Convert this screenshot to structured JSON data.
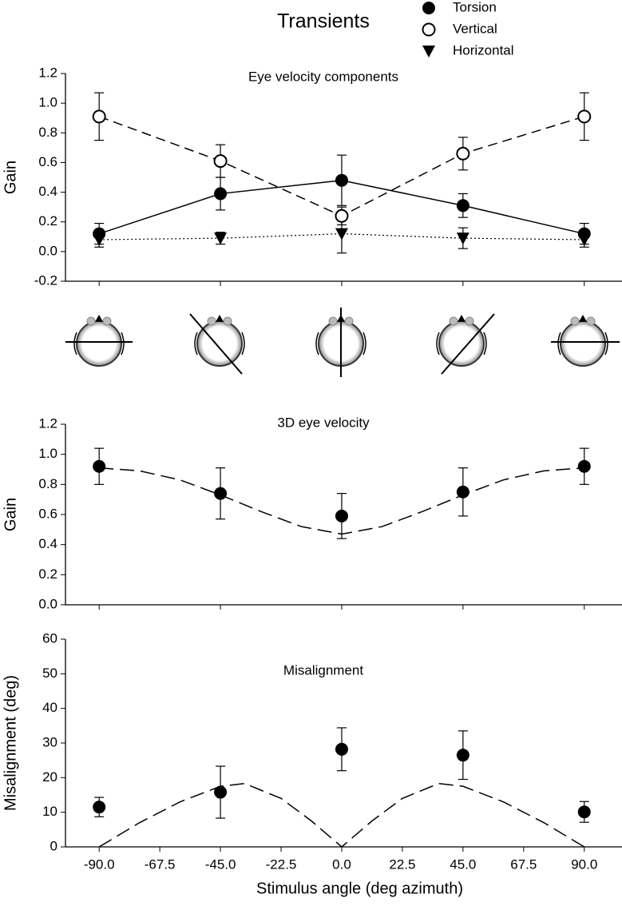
{
  "title": "Transients",
  "chart_data": [
    {
      "type": "line",
      "annotation": "Eye velocity components",
      "ylabel": "Gain",
      "x": [
        -90,
        -45,
        0,
        45,
        90
      ],
      "xlim": [
        -102.5,
        104
      ],
      "ylim": [
        -0.2,
        1.2
      ],
      "yticks": [
        -0.2,
        {
          "value": 0,
          "label": "0.0"
        },
        0.2,
        0.4,
        0.6,
        0.8,
        {
          "value": 1,
          "label": "1.0"
        },
        1.2
      ],
      "legend": "top-right",
      "series": [
        {
          "name": "Torsion",
          "color": "#000000",
          "marker": "filled-circle",
          "linestyle": "solid",
          "values": [
            0.12,
            0.39,
            0.48,
            0.31,
            0.12
          ],
          "errors": [
            0.07,
            0.11,
            0.17,
            0.08,
            0.07
          ]
        },
        {
          "name": "Vertical",
          "color": "#000000",
          "marker": "open-circle",
          "linestyle": "dashed",
          "values": [
            0.91,
            0.61,
            0.24,
            0.66,
            0.91
          ],
          "errors": [
            0.16,
            0.11,
            0.06,
            0.11,
            0.16
          ]
        },
        {
          "name": "Horizontal",
          "color": "#000000",
          "marker": "down-triangle",
          "linestyle": "dotted",
          "values": [
            0.08,
            0.09,
            0.12,
            0.09,
            0.08
          ],
          "errors": [
            0.05,
            0.04,
            0.13,
            0.07,
            0.05
          ]
        }
      ]
    },
    {
      "type": "scatter",
      "annotation": "3D eye velocity",
      "ylabel": "Gain",
      "x": [
        -90,
        -45,
        0,
        45,
        90
      ],
      "xlim": [
        -102.5,
        104
      ],
      "ylim": [
        0,
        1.2
      ],
      "yticks": [
        {
          "value": 0,
          "label": "0.0"
        },
        0.2,
        0.4,
        0.6,
        0.8,
        {
          "value": 1,
          "label": "1.0"
        },
        1.2
      ],
      "color": "#000000",
      "values": [
        0.92,
        0.74,
        0.59,
        0.75,
        0.92
      ],
      "errors": [
        0.12,
        0.17,
        0.15,
        0.16,
        0.12
      ],
      "curve": {
        "x": [
          -90,
          -75,
          -60,
          -45,
          -30,
          -15,
          0,
          15,
          30,
          45,
          60,
          75,
          90
        ],
        "values": [
          0.91,
          0.89,
          0.83,
          0.73,
          0.62,
          0.52,
          0.47,
          0.52,
          0.62,
          0.73,
          0.83,
          0.89,
          0.91
        ]
      }
    },
    {
      "type": "scatter",
      "annotation": "Misalignment",
      "ylabel": "Misalignment (deg)",
      "xlabel": "Stimulus angle (deg azimuth)",
      "x": [
        -90,
        -45,
        0,
        45,
        90
      ],
      "xlim": [
        -102.5,
        104
      ],
      "xticks": [
        {
          "value": -90,
          "label": "-90.0"
        },
        -67.5,
        {
          "value": -45,
          "label": "-45.0"
        },
        -22.5,
        {
          "value": 0,
          "label": "0.0"
        },
        22.5,
        {
          "value": 45,
          "label": "45.0"
        },
        67.5,
        {
          "value": 90,
          "label": "90.0"
        }
      ],
      "ylim": [
        0,
        60
      ],
      "yticks": [
        0,
        10,
        20,
        30,
        40,
        50,
        60
      ],
      "color": "#000000",
      "values": [
        11.5,
        15.8,
        28.2,
        26.5,
        10.1
      ],
      "errors": [
        2.8,
        7.5,
        6.2,
        7,
        3
      ],
      "curve": {
        "x": [
          -90,
          -75,
          -60,
          -45,
          -36,
          -22.5,
          -11.25,
          0,
          11.25,
          22.5,
          36,
          45,
          60,
          75,
          90
        ],
        "values": [
          0,
          7,
          13,
          17.5,
          18.3,
          14,
          7.5,
          0,
          7.5,
          14,
          18.3,
          17.5,
          13,
          7,
          0
        ]
      }
    }
  ]
}
